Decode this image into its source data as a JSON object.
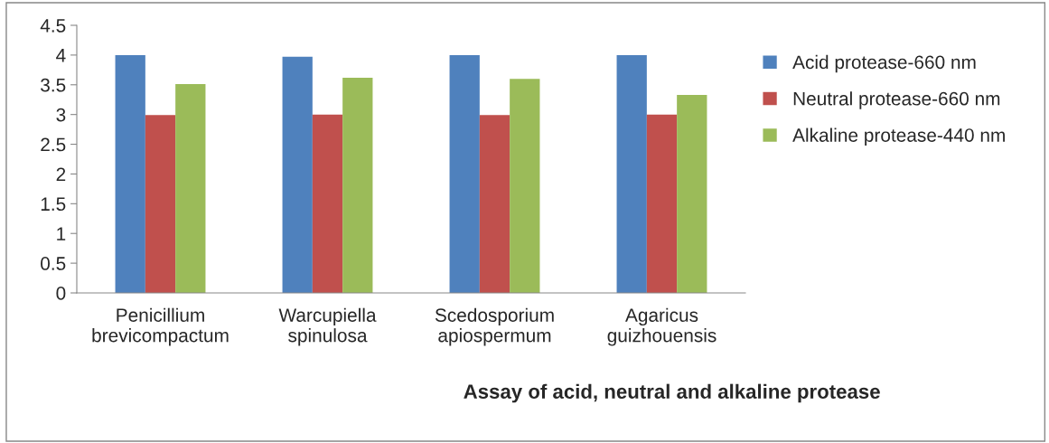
{
  "chart_data": {
    "type": "bar",
    "xlabel": "Assay of acid, neutral and alkaline protease",
    "categories": [
      "Penicillium\nbrevicompactum",
      "Warcupiella\nspinulosa",
      "Scedosporium\napiospermum",
      "Agaricus\nguizhouensis"
    ],
    "series": [
      {
        "name": "Acid protease-660 nm",
        "color": "#4f81bd",
        "values": [
          4.0,
          3.97,
          4.0,
          4.0
        ]
      },
      {
        "name": "Neutral protease-660 nm",
        "color": "#c0504d",
        "values": [
          2.99,
          3.0,
          2.99,
          3.0
        ]
      },
      {
        "name": "Alkaline protease-440 nm",
        "color": "#9bbb59",
        "values": [
          3.51,
          3.62,
          3.6,
          3.33
        ]
      }
    ],
    "ylim": [
      0,
      4.5
    ],
    "yticks": [
      0,
      0.5,
      1,
      1.5,
      2,
      2.5,
      3,
      3.5,
      4,
      4.5
    ],
    "grid": false,
    "legend": "right"
  }
}
